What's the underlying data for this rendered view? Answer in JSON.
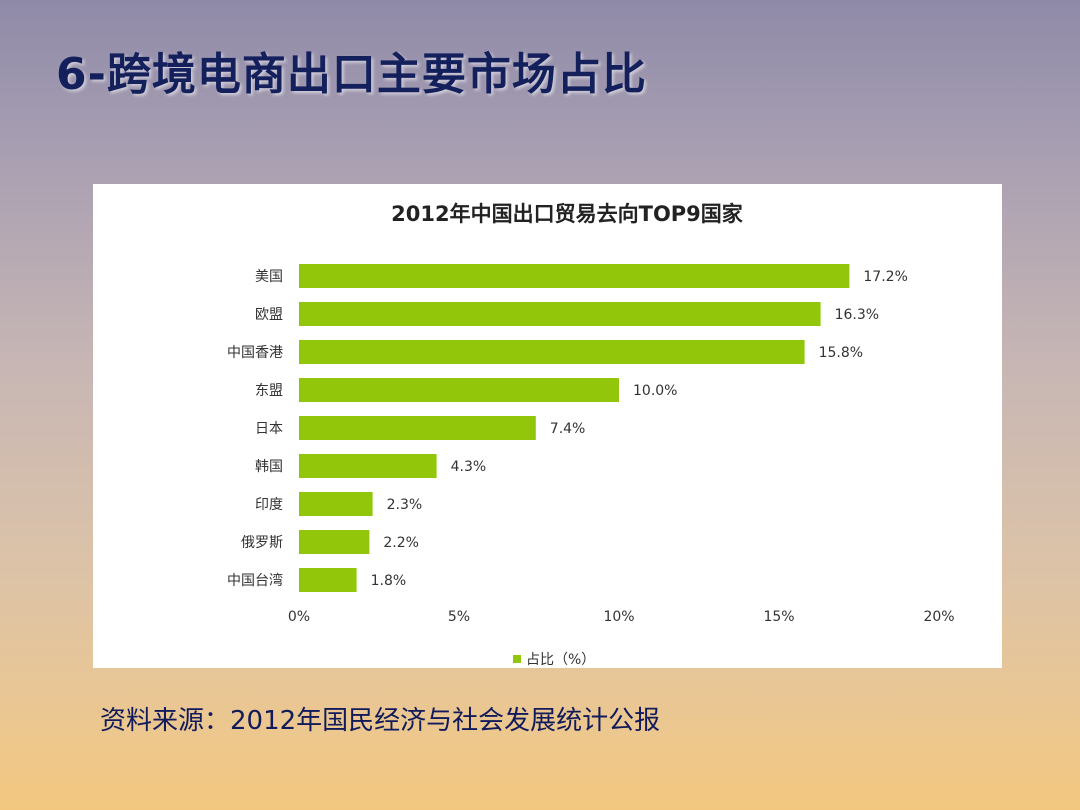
{
  "slide": {
    "title": "6-跨境电商出口主要市场占比",
    "source": "资料来源：2012年国民经济与社会发展统计公报"
  },
  "colors": {
    "bar": "#92c60a",
    "title": "#13205c",
    "text": "#333333"
  },
  "chart_data": {
    "type": "bar",
    "orientation": "horizontal",
    "title": "2012年中国出口贸易去向TOP9国家",
    "categories": [
      "美国",
      "欧盟",
      "中国香港",
      "东盟",
      "日本",
      "韩国",
      "印度",
      "俄罗斯",
      "中国台湾"
    ],
    "values": [
      17.2,
      16.3,
      15.8,
      10.0,
      7.4,
      4.3,
      2.3,
      2.2,
      1.8
    ],
    "value_labels": [
      "17.2%",
      "16.3%",
      "15.8%",
      "10.0%",
      "7.4%",
      "4.3%",
      "2.3%",
      "2.2%",
      "1.8%"
    ],
    "x_ticks": [
      0,
      5,
      10,
      15,
      20
    ],
    "x_tick_labels": [
      "0%",
      "5%",
      "10%",
      "15%",
      "20%"
    ],
    "xlim": [
      0,
      20
    ],
    "grid": false,
    "legend": {
      "label": "占比（%）",
      "position": "bottom"
    }
  }
}
